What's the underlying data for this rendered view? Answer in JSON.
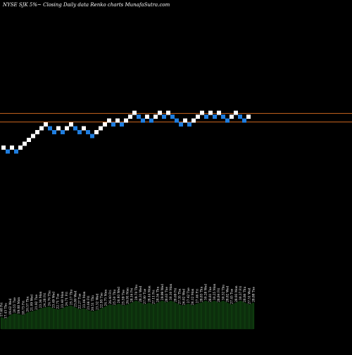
{
  "header": {
    "title": "NYSE SJK 5%~  Closing Daily data  Renko  charts MunafaSutra.com"
  },
  "colors": {
    "background": "#000000",
    "up_brick": "#ffffff",
    "down_brick": "#1f7ee0",
    "reference_line": "#c8641e",
    "volume_fill": "#0c2e0c",
    "volume_bar": "#0e3a0e"
  },
  "chart_data": {
    "type": "renko",
    "title": "NYSE SJK 5%~  Closing Daily data  Renko  charts MunafaSutra.com",
    "bricks": [
      {
        "i": 0,
        "level": 0,
        "dir": "up"
      },
      {
        "i": 1,
        "level": -1,
        "dir": "down"
      },
      {
        "i": 2,
        "level": 0,
        "dir": "up"
      },
      {
        "i": 3,
        "level": -1,
        "dir": "down"
      },
      {
        "i": 4,
        "level": 0,
        "dir": "up"
      },
      {
        "i": 5,
        "level": 1,
        "dir": "up"
      },
      {
        "i": 6,
        "level": 2,
        "dir": "up"
      },
      {
        "i": 7,
        "level": 3,
        "dir": "up"
      },
      {
        "i": 8,
        "level": 4,
        "dir": "up"
      },
      {
        "i": 9,
        "level": 5,
        "dir": "up"
      },
      {
        "i": 10,
        "level": 6,
        "dir": "up"
      },
      {
        "i": 11,
        "level": 5,
        "dir": "down"
      },
      {
        "i": 12,
        "level": 4,
        "dir": "down"
      },
      {
        "i": 13,
        "level": 5,
        "dir": "up"
      },
      {
        "i": 14,
        "level": 4,
        "dir": "down"
      },
      {
        "i": 15,
        "level": 5,
        "dir": "up"
      },
      {
        "i": 16,
        "level": 6,
        "dir": "up"
      },
      {
        "i": 17,
        "level": 5,
        "dir": "down"
      },
      {
        "i": 18,
        "level": 4,
        "dir": "down"
      },
      {
        "i": 19,
        "level": 5,
        "dir": "up"
      },
      {
        "i": 20,
        "level": 4,
        "dir": "down"
      },
      {
        "i": 21,
        "level": 3,
        "dir": "down"
      },
      {
        "i": 22,
        "level": 4,
        "dir": "up"
      },
      {
        "i": 23,
        "level": 5,
        "dir": "up"
      },
      {
        "i": 24,
        "level": 6,
        "dir": "up"
      },
      {
        "i": 25,
        "level": 7,
        "dir": "up"
      },
      {
        "i": 26,
        "level": 6,
        "dir": "down"
      },
      {
        "i": 27,
        "level": 7,
        "dir": "up"
      },
      {
        "i": 28,
        "level": 6,
        "dir": "down"
      },
      {
        "i": 29,
        "level": 7,
        "dir": "up"
      },
      {
        "i": 30,
        "level": 8,
        "dir": "up"
      },
      {
        "i": 31,
        "level": 9,
        "dir": "up"
      },
      {
        "i": 32,
        "level": 8,
        "dir": "down"
      },
      {
        "i": 33,
        "level": 7,
        "dir": "down"
      },
      {
        "i": 34,
        "level": 8,
        "dir": "up"
      },
      {
        "i": 35,
        "level": 7,
        "dir": "down"
      },
      {
        "i": 36,
        "level": 8,
        "dir": "up"
      },
      {
        "i": 37,
        "level": 9,
        "dir": "up"
      },
      {
        "i": 38,
        "level": 8,
        "dir": "down"
      },
      {
        "i": 39,
        "level": 9,
        "dir": "up"
      },
      {
        "i": 40,
        "level": 8,
        "dir": "down"
      },
      {
        "i": 41,
        "level": 7,
        "dir": "down"
      },
      {
        "i": 42,
        "level": 6,
        "dir": "down"
      },
      {
        "i": 43,
        "level": 7,
        "dir": "up"
      },
      {
        "i": 44,
        "level": 6,
        "dir": "down"
      },
      {
        "i": 45,
        "level": 7,
        "dir": "up"
      },
      {
        "i": 46,
        "level": 8,
        "dir": "up"
      },
      {
        "i": 47,
        "level": 9,
        "dir": "up"
      },
      {
        "i": 48,
        "level": 8,
        "dir": "down"
      },
      {
        "i": 49,
        "level": 9,
        "dir": "up"
      },
      {
        "i": 50,
        "level": 8,
        "dir": "down"
      },
      {
        "i": 51,
        "level": 9,
        "dir": "up"
      },
      {
        "i": 52,
        "level": 8,
        "dir": "down"
      },
      {
        "i": 53,
        "level": 7,
        "dir": "down"
      },
      {
        "i": 54,
        "level": 8,
        "dir": "up"
      },
      {
        "i": 55,
        "level": 9,
        "dir": "up"
      },
      {
        "i": 56,
        "level": 8,
        "dir": "down"
      },
      {
        "i": 57,
        "level": 7,
        "dir": "down"
      },
      {
        "i": 58,
        "level": 8,
        "dir": "up"
      }
    ],
    "reference_lines": [
      {
        "name": "upper",
        "level": 8.3
      },
      {
        "name": "lower",
        "level": 6.1
      }
    ],
    "volume_labels": [
      "17.68 Fri",
      "17.43 Thu",
      "19.62 Wed",
      "20.55 Tue",
      "19.08 Mon",
      "18.73 Fri",
      "20.57 Thu",
      "21.09 Wed",
      "21.92 Tue",
      "23.36 Mon",
      "24.28 Fri",
      "24.76 Thu",
      "23.49 Wed",
      "22.71 Tue",
      "23.40 Mon",
      "24.71 Fri",
      "25.17 Thu",
      "23.80 Wed",
      "22.27 Tue",
      "23.06 Mon",
      "21.66 Fri",
      "20.51 Thu",
      "21.32 Wed",
      "22.95 Tue",
      "24.75 Mon",
      "26.40 Fri",
      "25.50 Thu",
      "26.93 Wed",
      "25.59 Tue",
      "26.91 Mon",
      "28.16 Fri",
      "29.70 Thu",
      "28.31 Wed",
      "27.00 Tue",
      "28.44 Mon",
      "27.11 Fri",
      "28.56 Thu",
      "29.99 Wed",
      "28.63 Tue",
      "30.10 Mon",
      "28.69 Fri",
      "27.35 Thu",
      "26.02 Wed",
      "27.42 Tue",
      "26.12 Mon",
      "27.46 Fri",
      "28.83 Thu",
      "30.28 Wed",
      "28.81 Tue",
      "30.25 Mon",
      "28.84 Fri",
      "30.32 Thu",
      "28.82 Wed",
      "27.45 Tue",
      "28.93 Mon",
      "30.37 Fri",
      "28.86 Thu",
      "27.51 Wed",
      "28.88 Tue"
    ],
    "volume": [
      12,
      10,
      14,
      16,
      15,
      14,
      17,
      18,
      19,
      21,
      22,
      23,
      21,
      20,
      21,
      23,
      24,
      22,
      20,
      21,
      19,
      18,
      19,
      21,
      23,
      25,
      24,
      26,
      24,
      25,
      27,
      29,
      27,
      25,
      27,
      25,
      27,
      29,
      27,
      29,
      27,
      25,
      24,
      26,
      24,
      26,
      27,
      29,
      27,
      29,
      27,
      29,
      27,
      25,
      27,
      29,
      27,
      25,
      27
    ]
  }
}
